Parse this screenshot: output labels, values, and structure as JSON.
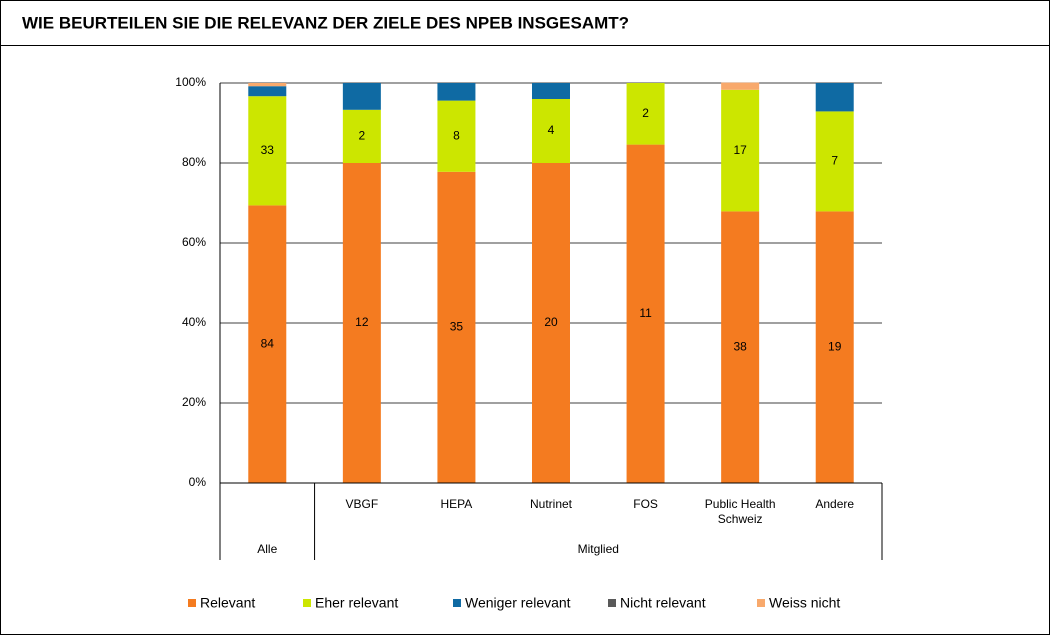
{
  "chart_data": {
    "type": "stacked_bar_100",
    "title": "WIE BEURTEILEN SIE DIE RELEVANZ DER ZIELE DES NPEB INSGESAMT?",
    "categories": [
      null,
      "VBGF",
      "HEPA",
      "Nutrinet",
      "FOS",
      "Public Health Schweiz",
      "Andere"
    ],
    "groups": [
      {
        "name": "Alle",
        "count": 1
      },
      {
        "name": "Mitglied",
        "count": 6
      }
    ],
    "series": [
      {
        "name": "Relevant",
        "color": "#f47b20",
        "values": [
          69.4,
          80,
          77.8,
          80,
          84.6,
          67.9,
          67.9
        ],
        "counts": [
          84,
          12,
          35,
          20,
          11,
          38,
          19
        ]
      },
      {
        "name": "Eher relevant",
        "color": "#cce600",
        "values": [
          27.3,
          13.3,
          17.8,
          16,
          15.4,
          30.4,
          25
        ],
        "counts": [
          33,
          2,
          8,
          4,
          2,
          17,
          7
        ]
      },
      {
        "name": "Weniger relevant",
        "color": "#0f6aa3",
        "values": [
          2.5,
          6.7,
          4.4,
          4,
          0,
          0,
          7.1
        ],
        "counts": [
          null,
          null,
          null,
          null,
          null,
          null,
          null
        ]
      },
      {
        "name": "Nicht relevant",
        "color": "#595959",
        "values": [
          0,
          0,
          0,
          0,
          0,
          0,
          0
        ],
        "counts": [
          null,
          null,
          null,
          null,
          null,
          null,
          null
        ]
      },
      {
        "name": "Weiss nicht",
        "color": "#f8a96c",
        "values": [
          0.8,
          0,
          0,
          0,
          0,
          1.8,
          0
        ],
        "counts": [
          null,
          null,
          null,
          null,
          null,
          null,
          null
        ]
      }
    ],
    "ylim": [
      0,
      100
    ],
    "yticks": [
      {
        "value": 0,
        "label": "0%"
      },
      {
        "value": 20,
        "label": "20%"
      },
      {
        "value": 40,
        "label": "40%"
      },
      {
        "value": 60,
        "label": "60%"
      },
      {
        "value": 80,
        "label": "80%"
      },
      {
        "value": 100,
        "label": "100%"
      }
    ],
    "grid": true,
    "legend": "bottom"
  }
}
